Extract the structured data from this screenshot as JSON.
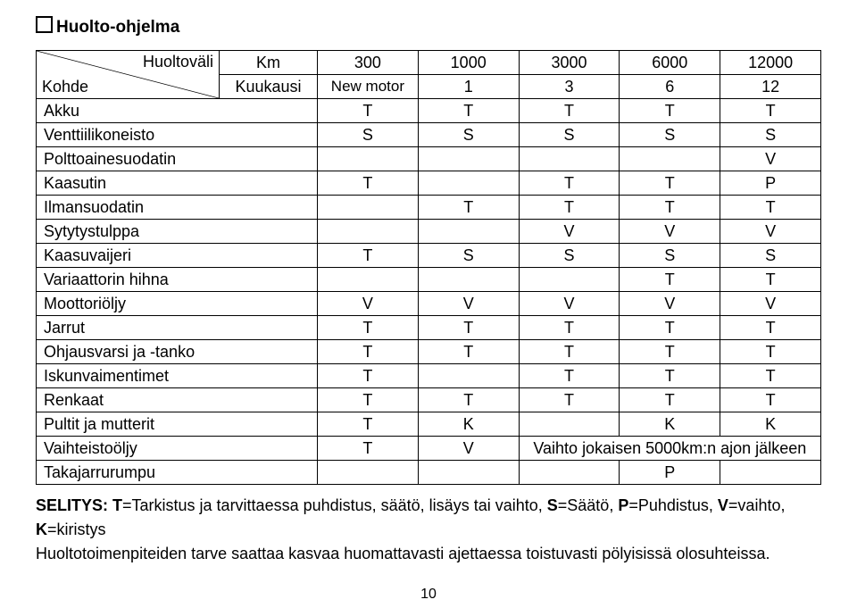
{
  "title": "Huolto-ohjelma",
  "header": {
    "diag_top": "Huoltoväli",
    "diag_bottom": "Kohde",
    "km_label": "Km",
    "kk_label": "Kuukausi",
    "km_cols": [
      "300",
      "1000",
      "3000",
      "6000",
      "12000"
    ],
    "kk_cols": [
      "New motor",
      "1",
      "3",
      "6",
      "12"
    ]
  },
  "rows": [
    {
      "label": "Akku",
      "cells": [
        "T",
        "T",
        "T",
        "T",
        "T"
      ]
    },
    {
      "label": "Venttiilikoneisto",
      "cells": [
        "S",
        "S",
        "S",
        "S",
        "S"
      ]
    },
    {
      "label": "Polttoainesuodatin",
      "cells": [
        "",
        "",
        "",
        "",
        "V"
      ]
    },
    {
      "label": "Kaasutin",
      "cells": [
        "T",
        "",
        "T",
        "T",
        "P"
      ]
    },
    {
      "label": "Ilmansuodatin",
      "cells": [
        "",
        "T",
        "T",
        "T",
        "T"
      ]
    },
    {
      "label": "Sytytystulppa",
      "cells": [
        "",
        "",
        "V",
        "V",
        "V"
      ]
    },
    {
      "label": "Kaasuvaijeri",
      "cells": [
        "T",
        "S",
        "S",
        "S",
        "S"
      ]
    },
    {
      "label": "Variaattorin hihna",
      "cells": [
        "",
        "",
        "",
        "T",
        "T"
      ]
    },
    {
      "label": "Moottoriöljy",
      "cells": [
        "V",
        "V",
        "V",
        "V",
        "V"
      ]
    },
    {
      "label": "Jarrut",
      "cells": [
        "T",
        "T",
        "T",
        "T",
        "T"
      ]
    },
    {
      "label": "Ohjausvarsi ja -tanko",
      "cells": [
        "T",
        "T",
        "T",
        "T",
        "T"
      ]
    },
    {
      "label": "Iskunvaimentimet",
      "cells": [
        "T",
        "",
        "T",
        "T",
        "T"
      ]
    },
    {
      "label": "Renkaat",
      "cells": [
        "T",
        "T",
        "T",
        "T",
        "T"
      ]
    },
    {
      "label": "Pultit ja mutterit",
      "cells": [
        "T",
        "K",
        "",
        "K",
        "K"
      ]
    }
  ],
  "vaihteisto": {
    "label": "Vaihteistoöljy",
    "c1": "T",
    "c2": "V",
    "merged": "Vaihto jokaisen 5000km:n ajon jälkeen"
  },
  "takajarru": {
    "label": "Takajarrurumpu",
    "cell": "P"
  },
  "selitys": {
    "lead_bold": "SELITYS: T",
    "lead_rest": "=Tarkistus ja tarvittaessa puhdistus, säätö, lisäys tai vaihto, ",
    "s_bold": "S",
    "s_rest": "=Säätö, ",
    "p_bold": "P",
    "p_rest": "=Puhdistus, ",
    "v_bold": "V",
    "v_rest": "=vaihto, ",
    "k_bold": "K",
    "k_rest": "=kiristys",
    "note": "Huoltotoimenpiteiden tarve saattaa kasvaa huomattavasti ajettaessa toistuvasti pölyisissä olosuhteissa."
  },
  "page_number": "10"
}
